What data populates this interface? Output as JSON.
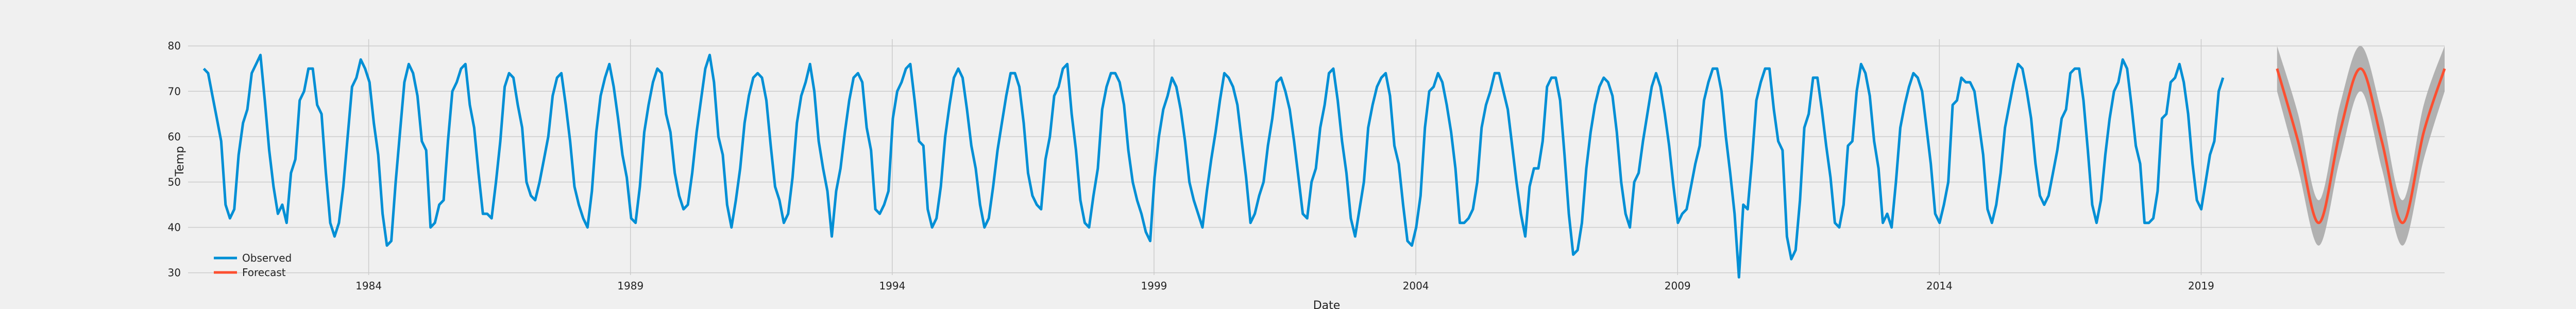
{
  "chart_data": {
    "type": "line",
    "title": "",
    "xlabel": "Date",
    "ylabel": "Temp",
    "xlim": [
      1980.55,
      2023.65
    ],
    "ylim": [
      29.5,
      81.5
    ],
    "x_ticks": [
      1984,
      1989,
      1994,
      1999,
      2004,
      2009,
      2014,
      2019
    ],
    "y_ticks": [
      30,
      40,
      50,
      60,
      70,
      80
    ],
    "grid": true,
    "legend": {
      "position": "lower-left",
      "entries": [
        "Observed",
        "Forecast"
      ]
    },
    "series": [
      {
        "name": "Observed",
        "color": "#008fd5",
        "x_start": 1980.85,
        "step": 0.0833,
        "values": [
          75,
          74,
          69,
          64,
          59,
          45,
          42,
          44,
          56,
          63,
          66,
          74,
          76,
          78,
          68,
          57,
          49,
          43,
          45,
          41,
          52,
          55,
          68,
          70,
          75,
          75,
          67,
          65,
          52,
          41,
          38,
          41,
          49,
          60,
          71,
          73,
          77,
          75,
          72,
          63,
          56,
          43,
          36,
          37,
          50,
          61,
          72,
          76,
          74,
          69,
          59,
          57,
          40,
          41,
          45,
          46,
          59,
          70,
          72,
          75,
          76,
          67,
          62,
          52,
          43,
          43,
          42,
          50,
          59,
          71,
          74,
          73,
          67,
          62,
          50,
          47,
          46,
          50,
          55,
          60,
          69,
          73,
          74,
          67,
          59,
          49,
          45,
          42,
          40,
          48,
          61,
          69,
          73,
          76,
          71,
          64,
          56,
          51,
          42,
          41,
          49,
          61,
          67,
          72,
          75,
          74,
          65,
          61,
          52,
          47,
          44,
          45,
          52,
          61,
          68,
          75,
          78,
          72,
          60,
          56,
          45,
          40,
          46,
          53,
          63,
          69,
          73,
          74,
          73,
          68,
          58,
          49,
          46,
          41,
          43,
          51,
          63,
          69,
          72,
          76,
          70,
          59,
          53,
          48,
          38,
          48,
          53,
          61,
          68,
          73,
          74,
          72,
          62,
          57,
          44,
          43,
          45,
          48,
          64,
          70,
          72,
          75,
          76,
          68,
          59,
          58,
          44,
          40,
          42,
          49,
          60,
          67,
          73,
          75,
          73,
          66,
          58,
          53,
          45,
          40,
          42,
          49,
          57,
          63,
          69,
          74,
          74,
          71,
          63,
          52,
          47,
          45,
          44,
          55,
          60,
          69,
          71,
          75,
          76,
          65,
          57,
          46,
          41,
          40,
          47,
          53,
          66,
          71,
          74,
          74,
          72,
          67,
          57,
          50,
          46,
          43,
          39,
          37,
          51,
          60,
          66,
          69,
          73,
          71,
          66,
          59,
          50,
          46,
          43,
          40,
          48,
          55,
          61,
          68,
          74,
          73,
          71,
          67,
          59,
          51,
          41,
          43,
          47,
          50,
          58,
          64,
          72,
          73,
          70,
          66,
          59,
          51,
          43,
          42,
          50,
          53,
          62,
          67,
          74,
          75,
          68,
          59,
          52,
          42,
          38,
          44,
          50,
          62,
          67,
          71,
          73,
          74,
          69,
          58,
          54,
          45,
          37,
          36,
          40,
          47,
          62,
          70,
          71,
          74,
          72,
          67,
          61,
          53,
          41,
          41,
          42,
          44,
          50,
          62,
          67,
          70,
          74,
          74,
          70,
          66,
          58,
          50,
          43,
          38,
          49,
          53,
          53,
          59,
          71,
          73,
          73,
          68,
          56,
          43,
          34,
          35,
          41,
          53,
          61,
          67,
          71,
          73,
          72,
          69,
          61,
          50,
          43,
          40,
          50,
          52,
          59,
          65,
          71,
          74,
          71,
          65,
          58,
          49,
          41,
          43,
          44,
          49,
          54,
          58,
          68,
          72,
          75,
          75,
          70,
          60,
          52,
          43,
          29,
          45,
          44,
          55,
          68,
          72,
          75,
          75,
          66,
          59,
          57,
          38,
          33,
          35,
          46,
          62,
          65,
          73,
          73,
          66,
          58,
          51,
          41,
          40,
          45,
          58,
          59,
          70,
          76,
          74,
          69,
          59,
          53,
          41,
          43,
          40,
          50,
          62,
          67,
          71,
          74,
          73,
          70,
          62,
          54,
          43,
          41,
          45,
          50,
          67,
          68,
          73,
          72,
          72,
          70,
          63,
          56,
          44,
          41,
          45,
          52,
          62,
          67,
          72,
          76,
          75,
          70,
          64,
          54,
          47,
          45,
          47,
          52,
          57,
          64,
          66,
          74,
          75,
          75,
          68,
          57,
          45,
          41,
          46,
          56,
          64,
          70,
          72,
          77,
          75,
          67,
          58,
          54,
          41,
          41,
          42,
          48,
          64,
          65,
          72,
          73,
          76,
          72,
          65,
          54,
          46,
          44,
          50,
          56,
          59,
          70,
          73
        ]
      },
      {
        "name": "Forecast",
        "color": "#fc4f30",
        "band_color": "#aaaaaa",
        "x": [
          2020.45,
          2020.85,
          2021.25,
          2021.65,
          2022.05,
          2022.45,
          2022.85,
          2023.25,
          2023.65
        ],
        "values": [
          75,
          59,
          41,
          61,
          75,
          59,
          41,
          61,
          75
        ],
        "lower": [
          70,
          53,
          36,
          55,
          70,
          53,
          36,
          55,
          70
        ],
        "upper": [
          80,
          65,
          46,
          67,
          80,
          65,
          46,
          67,
          80
        ]
      }
    ]
  }
}
